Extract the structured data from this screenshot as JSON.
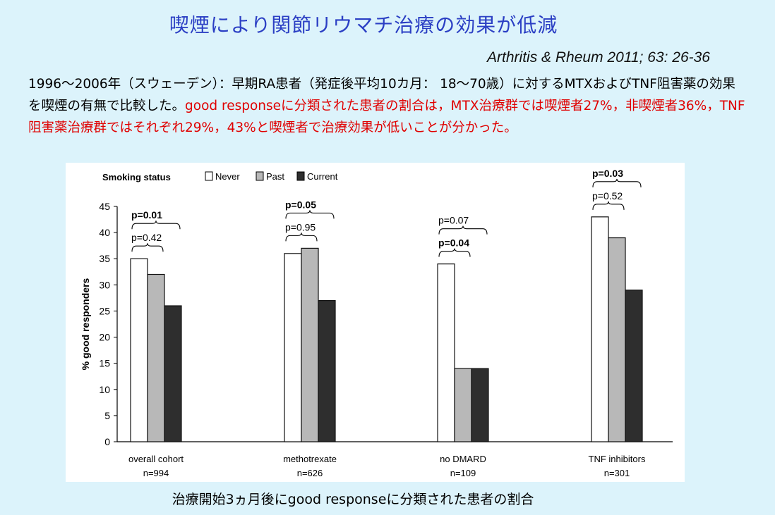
{
  "slide": {
    "title": "喫煙により関節リウマチ治療の効果が低減",
    "citation": "Arthritis  & Rheum 2011; 63: 26-36",
    "summary_black": "1996〜2006年（スウェーデン）：早期RA患者（発症後平均10カ月： 18〜70歳）に対するMTXおよびTNF阻害薬の効果を喫煙の有無で比較した。",
    "summary_red": "good responseに分類された患者の割合は，MTX治療群では喫煙者27%，非喫煙者36%，TNF阻害薬治療群ではそれぞれ29%，43%と喫煙者で治療効果が低いことが分かった。",
    "caption": "治療開始3ヵ月後にgood responseに分類された患者の割合"
  },
  "chart_data": {
    "type": "bar",
    "legend_title": "Smoking status",
    "legend_position": "top",
    "ylabel": "% good responders",
    "ylim": [
      0,
      45
    ],
    "yticks": [
      0,
      5,
      10,
      15,
      20,
      25,
      30,
      35,
      40,
      45
    ],
    "grid": false,
    "categories": [
      "overall cohort",
      "methotrexate",
      "no DMARD",
      "TNF inhibitors"
    ],
    "category_n": [
      "n=994",
      "n=626",
      "n=109",
      "n=301"
    ],
    "series": [
      {
        "name": "Never",
        "color": "#ffffff",
        "values": [
          35,
          36,
          34,
          43
        ]
      },
      {
        "name": "Past",
        "color": "#b8b8b8",
        "values": [
          32,
          37,
          14,
          39
        ]
      },
      {
        "name": "Current",
        "color": "#2e2e2e",
        "values": [
          26,
          27,
          14,
          29
        ]
      }
    ],
    "annotations": [
      {
        "group": 0,
        "text": "p=0.01",
        "bold": true,
        "span": [
          "Never",
          "Current"
        ]
      },
      {
        "group": 0,
        "text": "p=0.42",
        "bold": false,
        "span": [
          "Never",
          "Past"
        ]
      },
      {
        "group": 1,
        "text": "p=0.05",
        "bold": true,
        "span": [
          "Never",
          "Current"
        ]
      },
      {
        "group": 1,
        "text": "p=0.95",
        "bold": false,
        "span": [
          "Never",
          "Past"
        ]
      },
      {
        "group": 2,
        "text": "p=0.07",
        "bold": false,
        "span": [
          "Never",
          "Current"
        ]
      },
      {
        "group": 2,
        "text": "p=0.04",
        "bold": true,
        "span": [
          "Never",
          "Past"
        ]
      },
      {
        "group": 3,
        "text": "p=0.03",
        "bold": true,
        "span": [
          "Never",
          "Current"
        ]
      },
      {
        "group": 3,
        "text": "p=0.52",
        "bold": false,
        "span": [
          "Never",
          "Past"
        ]
      }
    ]
  }
}
